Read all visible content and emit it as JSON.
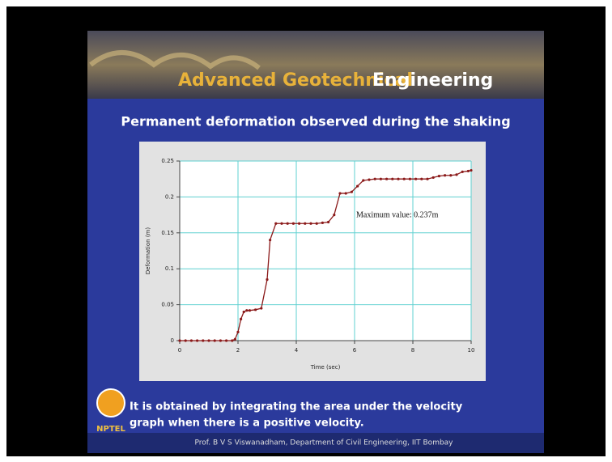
{
  "banner": {
    "title_part1": "Advanced Geotechnical",
    "title_part2": "Engineering"
  },
  "heading": "Permanent deformation observed during the shaking",
  "chart_data": {
    "type": "line",
    "x_label": "Time (sec)",
    "y_label": "Deformation (m)",
    "annotation": "Maximum value: 0.237m",
    "xlim": [
      0,
      10
    ],
    "xticks": [
      0,
      2,
      4,
      6,
      8,
      10
    ],
    "ylim": [
      0,
      0.25
    ],
    "yticks": [
      0,
      0.05,
      0.1,
      0.15,
      0.2,
      0.25
    ],
    "grid": true,
    "x": [
      0,
      0.2,
      0.4,
      0.6,
      0.8,
      1,
      1.2,
      1.4,
      1.6,
      1.8,
      1.9,
      2,
      2.1,
      2.2,
      2.3,
      2.4,
      2.6,
      2.8,
      3,
      3.1,
      3.3,
      3.5,
      3.7,
      3.9,
      4.1,
      4.3,
      4.5,
      4.7,
      4.9,
      5.1,
      5.3,
      5.5,
      5.7,
      5.9,
      6.1,
      6.3,
      6.5,
      6.7,
      6.9,
      7.1,
      7.3,
      7.5,
      7.7,
      7.9,
      8.1,
      8.3,
      8.5,
      8.7,
      8.9,
      9.1,
      9.3,
      9.5,
      9.7,
      9.9,
      10
    ],
    "series": [
      {
        "color": "#8b1a1a",
        "values": [
          0,
          0,
          0,
          0,
          0,
          0,
          0,
          0,
          0,
          0,
          0.002,
          0.012,
          0.03,
          0.04,
          0.042,
          0.042,
          0.043,
          0.045,
          0.085,
          0.14,
          0.163,
          0.163,
          0.163,
          0.163,
          0.163,
          0.163,
          0.163,
          0.163,
          0.164,
          0.165,
          0.175,
          0.205,
          0.205,
          0.207,
          0.215,
          0.223,
          0.224,
          0.225,
          0.225,
          0.225,
          0.225,
          0.225,
          0.225,
          0.225,
          0.225,
          0.225,
          0.225,
          0.227,
          0.229,
          0.23,
          0.23,
          0.231,
          0.235,
          0.236,
          0.237
        ]
      }
    ]
  },
  "body": {
    "lines": [
      "It is obtained by integrating the area under the velocity",
      "graph when there is a positive velocity."
    ]
  },
  "logo": "NPTEL",
  "footer": "Prof. B V S Viswanadham, Department of Civil Engineering, IIT Bombay"
}
